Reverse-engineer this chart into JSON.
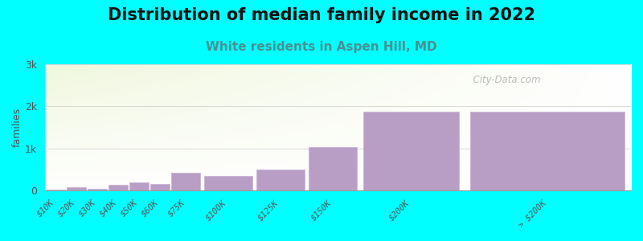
{
  "title": "Distribution of median family income in 2022",
  "subtitle": "White residents in Aspen Hill, MD",
  "ylabel": "families",
  "background_color": "#00FFFF",
  "bar_color": "#b89ec4",
  "bar_edge_color": "#c8b0d8",
  "categories": [
    "$10K",
    "$20K",
    "$30K",
    "$40K",
    "$50K",
    "$60K",
    "$75K",
    "$100K",
    "$125K",
    "$150K",
    "$200K",
    "> $200K"
  ],
  "values": [
    18,
    75,
    50,
    130,
    195,
    155,
    430,
    340,
    510,
    1040,
    1870,
    1870
  ],
  "bar_lefts": [
    0,
    10,
    20,
    30,
    40,
    50,
    60,
    75,
    100,
    125,
    150,
    200
  ],
  "bar_widths": [
    10,
    10,
    10,
    10,
    10,
    10,
    15,
    25,
    25,
    25,
    50,
    80
  ],
  "xlim": [
    0,
    280
  ],
  "ylim": [
    0,
    3000
  ],
  "yticks": [
    0,
    1000,
    2000,
    3000
  ],
  "ytick_labels": [
    "0",
    "1k",
    "2k",
    "3k"
  ],
  "title_fontsize": 15,
  "subtitle_fontsize": 11,
  "subtitle_color": "#4a9090",
  "watermark": "  City-Data.com"
}
